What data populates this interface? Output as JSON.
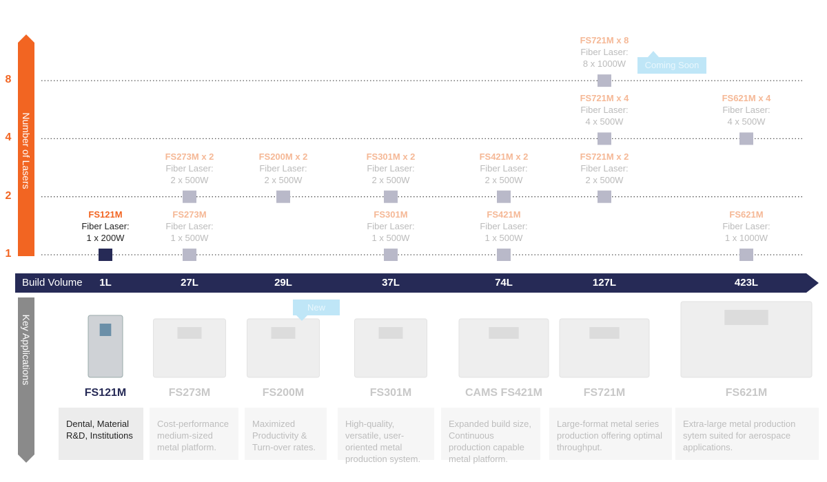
{
  "y_axis": {
    "label": "Number of Lasers",
    "ticks": [
      1,
      2,
      4,
      8
    ]
  },
  "build_volume": {
    "label": "Build Volume"
  },
  "applications_label": "Key Applications",
  "columns": [
    {
      "volume": "1L",
      "product": "FS121M",
      "description": "Dental, Material R&D, Institutions",
      "configs": [
        {
          "name": "FS121M",
          "laser": "Fiber Laser:",
          "spec": "1 x 200W",
          "lasers": 1
        }
      ]
    },
    {
      "volume": "27L",
      "product": "FS273M",
      "description": "Cost-performance medium-sized metal platform.",
      "configs": [
        {
          "name": "FS273M",
          "laser": "Fiber Laser:",
          "spec": "1 x 500W",
          "lasers": 1
        },
        {
          "name": "FS273M x 2",
          "laser": "Fiber Laser:",
          "spec": "2 x 500W",
          "lasers": 2
        }
      ]
    },
    {
      "volume": "29L",
      "product": "FS200M",
      "description": "Maximized Productivity & Turn-over rates.",
      "configs": [
        {
          "name": "FS200M x 2",
          "laser": "Fiber Laser:",
          "spec": "2 x 500W",
          "lasers": 2
        }
      ]
    },
    {
      "volume": "37L",
      "product": "FS301M",
      "description": "High-quality, versatile, user-oriented metal production system.",
      "configs": [
        {
          "name": "FS301M",
          "laser": "Fiber Laser:",
          "spec": "1 x 500W",
          "lasers": 1
        },
        {
          "name": "FS301M x 2",
          "laser": "Fiber Laser:",
          "spec": "2 x 500W",
          "lasers": 2
        }
      ]
    },
    {
      "volume": "74L",
      "product": "CAMS FS421M",
      "description": "Expanded build size, Continuous production capable metal platform.",
      "configs": [
        {
          "name": "FS421M",
          "laser": "Fiber Laser:",
          "spec": "1 x 500W",
          "lasers": 1
        },
        {
          "name": "FS421M x 2",
          "laser": "Fiber Laser:",
          "spec": "2 x 500W",
          "lasers": 2
        }
      ]
    },
    {
      "volume": "127L",
      "product": "FS721M",
      "description": "Large-format metal series production offering optimal throughput.",
      "configs": [
        {
          "name": "FS721M x 2",
          "laser": "Fiber Laser:",
          "spec": "2 x 500W",
          "lasers": 2
        },
        {
          "name": "FS721M x 4",
          "laser": "Fiber Laser:",
          "spec": "4 x 500W",
          "lasers": 4
        },
        {
          "name": "FS721M x 8",
          "laser": "Fiber Laser:",
          "spec": "8 x 1000W",
          "lasers": 8
        }
      ]
    },
    {
      "volume": "423L",
      "product": "FS621M",
      "description": "Extra-large metal production sytem suited for aerospace applications.",
      "configs": [
        {
          "name": "FS621M",
          "laser": "Fiber Laser:",
          "spec": "1 x 1000W",
          "lasers": 1
        },
        {
          "name": "FS621M x 4",
          "laser": "Fiber Laser:",
          "spec": "4 x 500W",
          "lasers": 4
        }
      ]
    }
  ],
  "badges": {
    "coming_soon": "Coming Soon",
    "new": "New"
  }
}
